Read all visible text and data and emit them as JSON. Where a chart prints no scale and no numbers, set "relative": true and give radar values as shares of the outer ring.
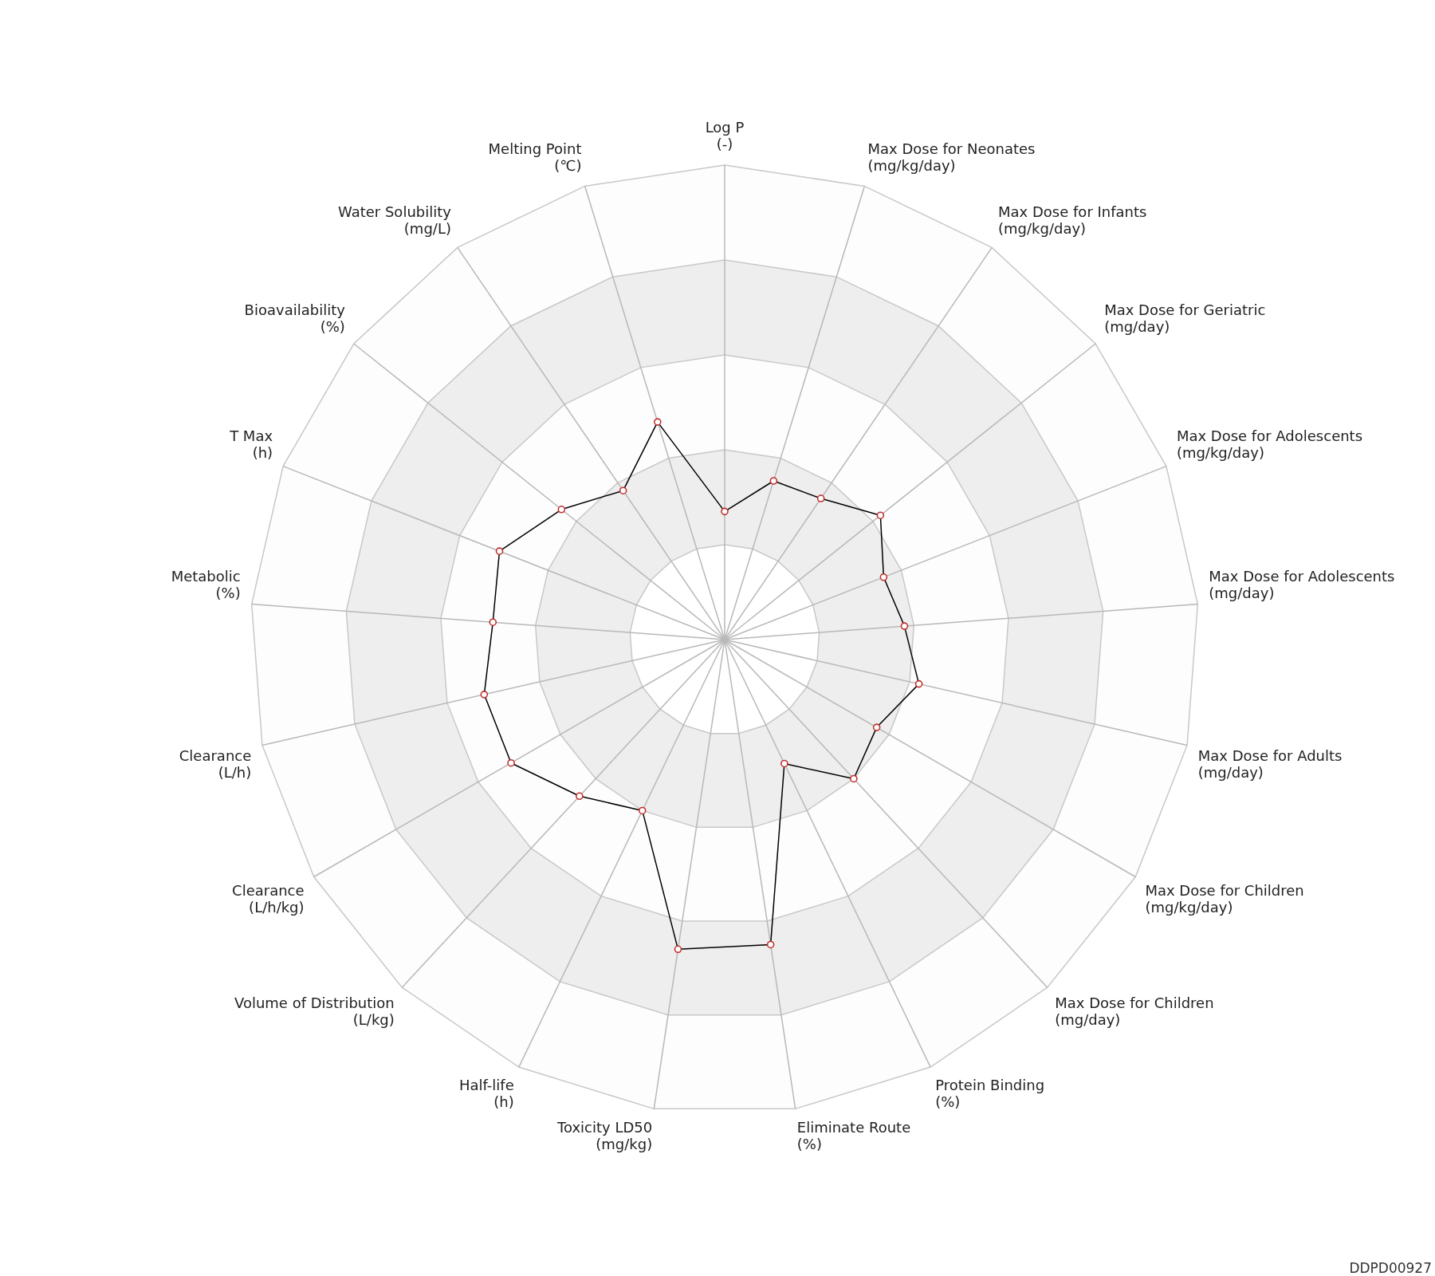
{
  "chart_data": {
    "type": "radar",
    "relative": true,
    "grid": true,
    "marker": "circle",
    "categories": [
      "Log P\n(-)",
      "Max Dose for Neonates\n(mg/kg/day)",
      "Max Dose for Infants\n(mg/kg/day)",
      "Max Dose for Geriatric\n(mg/day)",
      "Max Dose for Adolescents\n(mg/kg/day)",
      "Max Dose for Adolescents\n(mg/day)",
      "Max Dose for Adults\n(mg/day)",
      "Max Dose for Children\n(mg/kg/day)",
      "Max Dose for Children\n(mg/day)",
      "Protein Binding\n(%)",
      "Eliminate Route\n(%)",
      "Toxicity LD50\n(mg/kg)",
      "Half-life\n(h)",
      "Volume of Distribution\n(L/kg)",
      "Clearance\n(L/h/kg)",
      "Clearance\n(L/h)",
      "Metabolic\n(%)",
      "T Max\n(h)",
      "Bioavailability\n(%)",
      "Water Solubility\n(mg/L)",
      "Melting Point\n(℃)"
    ],
    "series": [
      {
        "color": "#000000",
        "values": [
          0.27,
          0.35,
          0.36,
          0.42,
          0.36,
          0.38,
          0.42,
          0.37,
          0.4,
          0.29,
          0.65,
          0.66,
          0.4,
          0.45,
          0.52,
          0.52,
          0.49,
          0.51,
          0.44,
          0.38,
          0.48
        ]
      }
    ],
    "annotations": [
      "DDPD00927"
    ]
  }
}
